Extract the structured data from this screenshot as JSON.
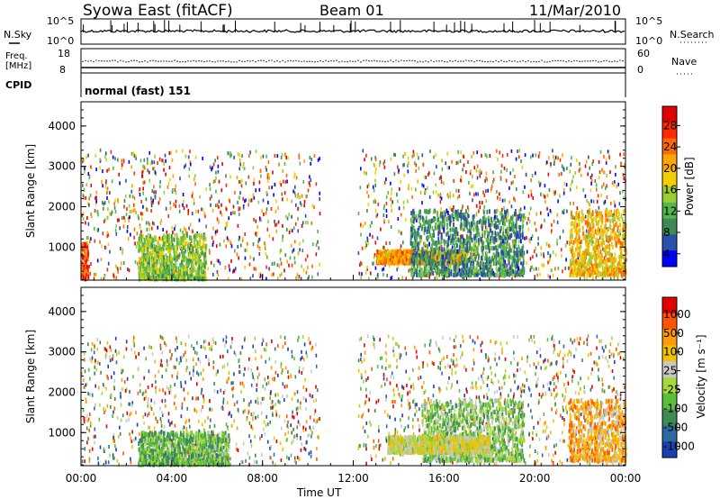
{
  "header": {
    "station": "Syowa East (fitACF)",
    "beam": "Beam 01",
    "date": "11/Mar/2010"
  },
  "noise_panel": {
    "left_label": "N.Sky",
    "right_label": "N.Search",
    "left_ticks": [
      "10^5",
      "10^0"
    ],
    "right_ticks": [
      "10^5",
      "10^0"
    ]
  },
  "freq_panel": {
    "left_label_1": "Freq.",
    "left_label_2": "[MHz]",
    "right_label": "Nave",
    "left_ticks": [
      "18",
      "8"
    ],
    "right_ticks": [
      "60",
      "0"
    ]
  },
  "cpid": {
    "label": "CPID",
    "value": "normal (fast) 151"
  },
  "x_axis": {
    "label": "Time UT",
    "ticks": [
      "00:00",
      "04:00",
      "08:00",
      "12:00",
      "16:00",
      "20:00",
      "00:00"
    ]
  },
  "power_panel": {
    "ylabel": "Slant Range [km]",
    "yticks": [
      "4000",
      "3000",
      "2000",
      "1000"
    ],
    "colorbar_label": "Power [dB]",
    "colorbar_ticks": [
      "28",
      "24",
      "20",
      "16",
      "12",
      "8",
      "4"
    ]
  },
  "velocity_panel": {
    "ylabel": "Slant Range [km]",
    "yticks": [
      "4000",
      "3000",
      "2000",
      "1000"
    ],
    "colorbar_label": "Velocity [m s⁻¹]",
    "colorbar_ticks": [
      "1000",
      "500",
      "100",
      "25",
      "-25",
      "-100",
      "-500",
      "-1000"
    ]
  },
  "colors": {
    "power_scale": [
      "#0000ff",
      "#2a4fa8",
      "#3d8a55",
      "#52b84a",
      "#9acd32",
      "#f2d000",
      "#ffa500",
      "#ff6a00",
      "#ff2a00",
      "#e00000"
    ],
    "velocity_scale": [
      "#1a3fb0",
      "#2d6aa0",
      "#3d8a55",
      "#5bbf3a",
      "#a8d83a",
      "#c8c8c8",
      "#f2c200",
      "#ff9a00",
      "#ff5500",
      "#e00000"
    ]
  },
  "chart_data": [
    {
      "type": "line",
      "xlabel": "",
      "ylabel": "",
      "series": [
        {
          "name": "N.Sky",
          "description_values": [
            3000,
            3000,
            3000,
            3000,
            3000,
            3000,
            3000
          ]
        }
      ],
      "x": [
        "00:00",
        "04:00",
        "08:00",
        "12:00",
        "16:00",
        "20:00",
        "00:00"
      ],
      "ylim": [
        1,
        100000
      ],
      "yscale": "log"
    },
    {
      "type": "line",
      "xlabel": "",
      "ylabel": "Freq. [MHz]",
      "series": [
        {
          "name": "Freq",
          "values": [
            10,
            10,
            10,
            10,
            10,
            10,
            10
          ]
        },
        {
          "name": "Nave",
          "values": [
            45,
            45,
            45,
            45,
            45,
            45,
            45
          ]
        }
      ],
      "x": [
        "00:00",
        "04:00",
        "08:00",
        "12:00",
        "16:00",
        "20:00",
        "00:00"
      ],
      "ylim": [
        8,
        18
      ]
    },
    {
      "type": "heatmap",
      "title": "",
      "xlabel": "Time UT",
      "ylabel": "Slant Range [km]",
      "zlabel": "Power [dB]",
      "x": [
        "00:00",
        "04:00",
        "08:00",
        "12:00",
        "16:00",
        "20:00",
        "00:00"
      ],
      "ylim": [
        180,
        4600
      ],
      "zlim": [
        0,
        30
      ],
      "regions": [
        {
          "t": [
            0.0,
            0.3
          ],
          "range": [
            200,
            1100
          ],
          "power": 24
        },
        {
          "t": [
            2.5,
            5.5
          ],
          "range": [
            200,
            1300
          ],
          "power": 12
        },
        {
          "t": [
            13.0,
            17.0
          ],
          "range": [
            600,
            900
          ],
          "power": 20
        },
        {
          "t": [
            14.5,
            19.5
          ],
          "range": [
            300,
            1900
          ],
          "power": 8
        },
        {
          "t": [
            21.5,
            24.0
          ],
          "range": [
            300,
            1900
          ],
          "power": 18
        }
      ]
    },
    {
      "type": "heatmap",
      "title": "",
      "xlabel": "Time UT",
      "ylabel": "Slant Range [km]",
      "zlabel": "Velocity [m s⁻¹]",
      "x": [
        "00:00",
        "04:00",
        "08:00",
        "12:00",
        "16:00",
        "20:00",
        "00:00"
      ],
      "ylim": [
        180,
        4600
      ],
      "zlim": [
        -1000,
        1000
      ],
      "regions": [
        {
          "t": [
            2.5,
            6.5
          ],
          "range": [
            200,
            1000
          ],
          "velocity": -300
        },
        {
          "t": [
            15.0,
            19.5
          ],
          "range": [
            300,
            1800
          ],
          "velocity": -200
        },
        {
          "t": [
            13.5,
            18.0
          ],
          "range": [
            500,
            900
          ],
          "velocity": 80
        },
        {
          "t": [
            21.5,
            24.0
          ],
          "range": [
            300,
            1800
          ],
          "velocity": 400
        }
      ]
    }
  ]
}
